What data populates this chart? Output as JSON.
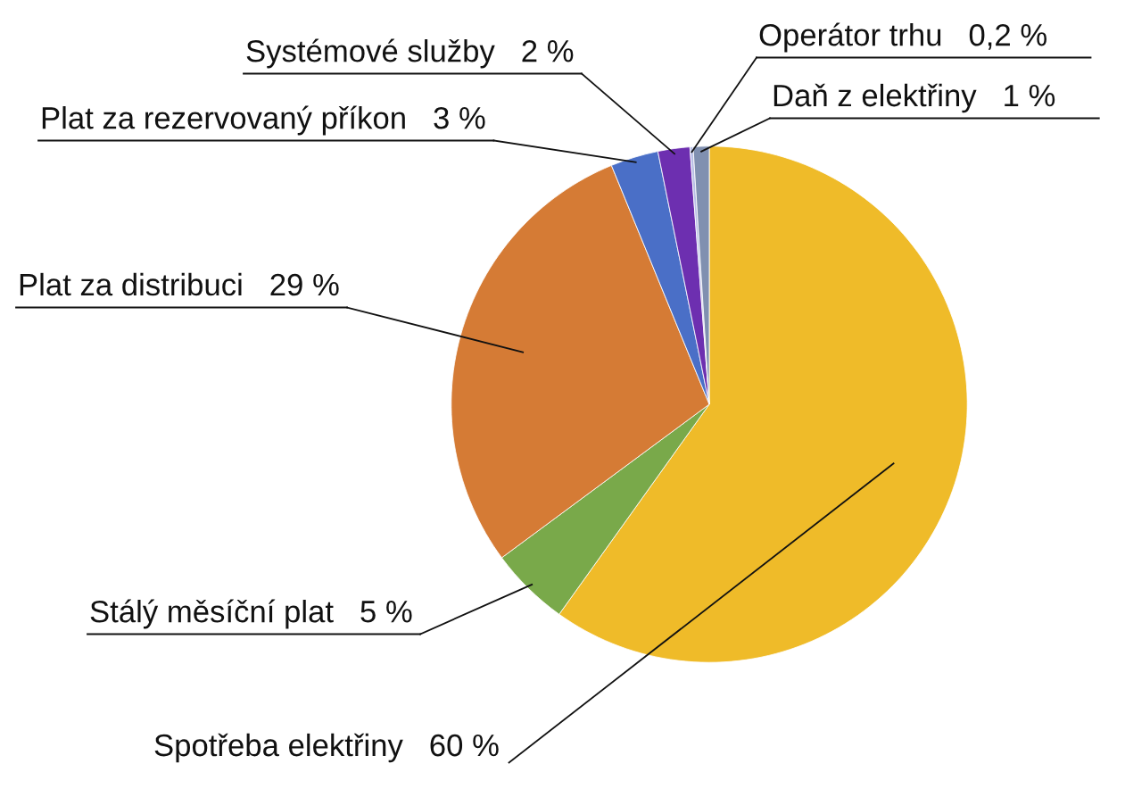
{
  "chart_data": {
    "type": "pie",
    "categories": [
      "Spotřeba elektřiny",
      "Stálý měsíční plat",
      "Plat za distribuci",
      "Plat za rezervovaný příkon",
      "Systémové služby",
      "Operátor trhu",
      "Daň z elektřiny"
    ],
    "values": [
      60,
      5,
      29,
      3,
      2,
      0.2,
      1
    ],
    "value_labels": [
      "60 %",
      "5 %",
      "29 %",
      "3 %",
      "2 %",
      "0,2 %",
      "1 %"
    ],
    "colors": [
      "#efbb29",
      "#79a94a",
      "#d57b35",
      "#4a6fc7",
      "#6d2fb0",
      "#b8bfe6",
      "#8090b0"
    ]
  }
}
